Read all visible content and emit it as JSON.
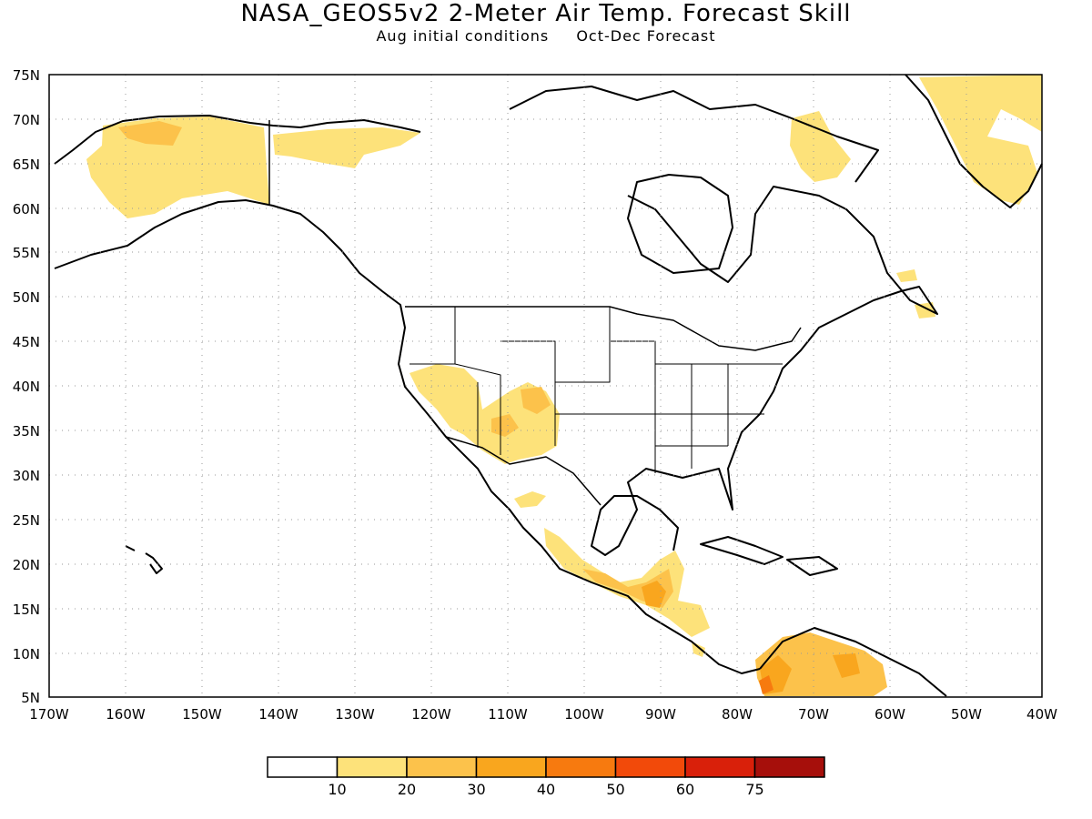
{
  "title": "NASA_GEOS5v2 2-Meter Air Temp. Forecast Skill",
  "subtitle_left": "Aug initial conditions",
  "subtitle_right": "Oct-Dec Forecast",
  "map": {
    "lat_ticks": [
      "75N",
      "70N",
      "65N",
      "60N",
      "55N",
      "50N",
      "45N",
      "40N",
      "35N",
      "30N",
      "25N",
      "20N",
      "15N",
      "10N",
      "5N"
    ],
    "lon_ticks": [
      "170W",
      "160W",
      "150W",
      "140W",
      "130W",
      "120W",
      "110W",
      "100W",
      "90W",
      "80W",
      "70W",
      "60W",
      "50W",
      "40W"
    ],
    "lat_range": [
      5,
      75
    ],
    "lon_range": [
      -170,
      -40
    ],
    "grid": "dotted"
  },
  "legend": {
    "colors": [
      "#ffffff",
      "#fde27a",
      "#fcc24b",
      "#f9a61e",
      "#f77a0f",
      "#f24a0a",
      "#d9200a",
      "#a60f0b"
    ],
    "labels": [
      "10",
      "20",
      "30",
      "40",
      "50",
      "60",
      "75"
    ]
  }
}
